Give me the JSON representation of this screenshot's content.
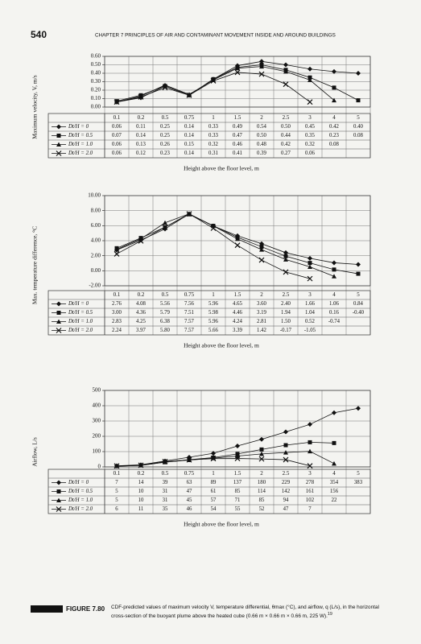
{
  "header": {
    "page": "540",
    "running_title": "CHAPTER 7 PRINCIPLES OF AIR AND CONTAMINANT MOVEMENT INSIDE AND AROUND BUILDINGS"
  },
  "chart_data": [
    {
      "type": "line",
      "ylabel": "Maximum velocity, V, m/s",
      "xlabel": "Height above the floor level, m",
      "categories": [
        "0.1",
        "0.2",
        "0.5",
        "0.75",
        "1",
        "1.5",
        "2",
        "2.5",
        "3",
        "4",
        "5"
      ],
      "ylim": [
        0,
        0.6
      ],
      "yticks": [
        {
          "value": 0,
          "label": "0.00"
        },
        {
          "value": 0.1,
          "label": "0.10"
        },
        {
          "value": 0.2,
          "label": "0.20"
        },
        {
          "value": 0.3,
          "label": "0.30"
        },
        {
          "value": 0.4,
          "label": "0.40"
        },
        {
          "value": 0.5,
          "label": "0.50"
        },
        {
          "value": 0.6,
          "label": "0.60"
        }
      ],
      "grid": true,
      "series": [
        {
          "name": "Dt/H = 0",
          "color": "#111111",
          "marker": "diamond",
          "values": [
            0.06,
            0.11,
            0.25,
            0.14,
            0.33,
            0.49,
            0.54,
            0.5,
            0.45,
            0.42,
            0.4
          ],
          "value_labels": [
            "0.06",
            "0.11",
            "0.25",
            "0.14",
            "0.33",
            "0.49",
            "0.54",
            "0.50",
            "0.45",
            "0.42",
            "0.40"
          ]
        },
        {
          "name": "Dt/H = 0.5",
          "color": "#111111",
          "marker": "square",
          "values": [
            0.07,
            0.14,
            0.25,
            0.14,
            0.33,
            0.47,
            0.5,
            0.44,
            0.35,
            0.23,
            0.08
          ],
          "value_labels": [
            "0.07",
            "0.14",
            "0.25",
            "0.14",
            "0.33",
            "0.47",
            "0.50",
            "0.44",
            "0.35",
            "0.23",
            "0.08"
          ]
        },
        {
          "name": "Dt/H = 1.0",
          "color": "#111111",
          "marker": "triangle",
          "values": [
            0.06,
            0.13,
            0.26,
            0.15,
            0.32,
            0.46,
            0.48,
            0.42,
            0.32,
            0.08,
            null
          ],
          "value_labels": [
            "0.06",
            "0.13",
            "0.26",
            "0.15",
            "0.32",
            "0.46",
            "0.48",
            "0.42",
            "0.32",
            "0.08",
            null
          ]
        },
        {
          "name": "Dt/H = 2.0",
          "color": "#111111",
          "marker": "x",
          "values": [
            0.06,
            0.12,
            0.23,
            0.14,
            0.31,
            0.41,
            0.39,
            0.27,
            0.06,
            null,
            null
          ],
          "value_labels": [
            "0.06",
            "0.12",
            "0.23",
            "0.14",
            "0.31",
            "0.41",
            "0.39",
            "0.27",
            "0.06",
            null,
            null
          ]
        }
      ]
    },
    {
      "type": "line",
      "ylabel": "Max. temperature difference, °C",
      "xlabel": "Height above the floor level, m",
      "categories": [
        "0.1",
        "0.2",
        "0.5",
        "0.75",
        "1",
        "1.5",
        "2",
        "2.5",
        "3",
        "4",
        "5"
      ],
      "ylim": [
        -2,
        10
      ],
      "yticks": [
        {
          "value": -2,
          "label": "-2.00"
        },
        {
          "value": 0,
          "label": "0.00"
        },
        {
          "value": 2,
          "label": "2.00"
        },
        {
          "value": 4,
          "label": "4.00"
        },
        {
          "value": 6,
          "label": "6.00"
        },
        {
          "value": 8,
          "label": "8.00"
        },
        {
          "value": 10,
          "label": "10.00"
        }
      ],
      "grid": true,
      "series": [
        {
          "name": "Dt/H = 0",
          "color": "#111111",
          "marker": "diamond",
          "values": [
            2.76,
            4.08,
            5.56,
            7.56,
            5.96,
            4.65,
            3.6,
            2.4,
            1.66,
            1.06,
            0.84
          ],
          "value_labels": [
            "2.76",
            "4.08",
            "5.56",
            "7.56",
            "5.96",
            "4.65",
            "3.60",
            "2.40",
            "1.66",
            "1.06",
            "0.84"
          ]
        },
        {
          "name": "Dt/H = 0.5",
          "color": "#111111",
          "marker": "square",
          "values": [
            3,
            4.36,
            5.79,
            7.51,
            5.98,
            4.46,
            3.19,
            1.94,
            1.04,
            0.16,
            -0.4
          ],
          "value_labels": [
            "3.00",
            "4.36",
            "5.79",
            "7.51",
            "5.98",
            "4.46",
            "3.19",
            "1.94",
            "1.04",
            "0.16",
            "-0.40"
          ]
        },
        {
          "name": "Dt/H = 1.0",
          "color": "#111111",
          "marker": "triangle",
          "values": [
            2.83,
            4.25,
            6.38,
            7.57,
            5.96,
            4.24,
            2.81,
            1.5,
            0.52,
            -0.74,
            null
          ],
          "value_labels": [
            "2.83",
            "4.25",
            "6.38",
            "7.57",
            "5.96",
            "4.24",
            "2.81",
            "1.50",
            "0.52",
            "-0.74",
            null
          ]
        },
        {
          "name": "Dt/H = 2.0",
          "color": "#111111",
          "marker": "x",
          "values": [
            2.24,
            3.97,
            5.8,
            7.57,
            5.66,
            3.39,
            1.42,
            -0.17,
            -1.05,
            null,
            null
          ],
          "value_labels": [
            "2.24",
            "3.97",
            "5.80",
            "7.57",
            "5.66",
            "3.39",
            "1.42",
            "-0.17",
            "-1.05",
            null,
            null
          ]
        }
      ]
    },
    {
      "type": "line",
      "ylabel": "Airflow, L/s",
      "xlabel": "Height above the floor level, m",
      "categories": [
        "0.1",
        "0.2",
        "0.5",
        "0.75",
        "1",
        "1.5",
        "2",
        "2.5",
        "3",
        "4",
        "5"
      ],
      "ylim": [
        0,
        500
      ],
      "yticks": [
        0,
        100,
        200,
        300,
        400,
        500
      ],
      "grid": true,
      "series": [
        {
          "name": "Dt/H = 0",
          "color": "#111111",
          "marker": "diamond",
          "values": [
            7,
            14,
            39,
            63,
            89,
            137,
            180,
            229,
            278,
            354,
            383
          ]
        },
        {
          "name": "Dt/H = 0.5",
          "color": "#111111",
          "marker": "square",
          "values": [
            5,
            10,
            31,
            47,
            61,
            85,
            114,
            142,
            161,
            156,
            null
          ]
        },
        {
          "name": "Dt/H = 1.0",
          "color": "#111111",
          "marker": "triangle",
          "values": [
            5,
            10,
            31,
            45,
            57,
            71,
            85,
            94,
            102,
            22,
            null
          ]
        },
        {
          "name": "Dt/H = 2.0",
          "color": "#111111",
          "marker": "x",
          "values": [
            6,
            11,
            35,
            46,
            54,
            55,
            52,
            47,
            7,
            null,
            null
          ]
        }
      ]
    }
  ],
  "caption": {
    "label": "FIGURE 7.80",
    "text": "CDF-predicted values of maximum velocity V, temperature differential, θmax (°C), and airflow, q (L/s), in the horizontal cross-section of the buoyant plume above the heated cube (0.66 m × 0.66 m × 0.66 m, 225 W).",
    "ref": "19"
  }
}
